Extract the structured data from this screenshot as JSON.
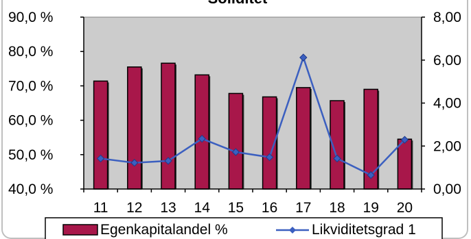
{
  "chart_data": {
    "type": "bar",
    "title": "Soliditet",
    "categories": [
      "11",
      "12",
      "13",
      "14",
      "15",
      "16",
      "17",
      "18",
      "19",
      "20"
    ],
    "series": [
      {
        "name": "Egenkapitalandel %",
        "type": "bar",
        "axis": "left",
        "color": "#a8174a",
        "values": [
          71.4,
          75.5,
          76.6,
          73.2,
          67.8,
          66.8,
          69.5,
          65.7,
          69.0,
          54.5
        ]
      },
      {
        "name": "Likviditetsgrad  1",
        "type": "line",
        "axis": "right",
        "color": "#3b5fc0",
        "values": [
          1.42,
          1.22,
          1.31,
          2.34,
          1.72,
          1.48,
          6.12,
          1.42,
          0.65,
          2.29
        ]
      }
    ],
    "y_left": {
      "lim": [
        40,
        90
      ],
      "ticks": [
        40,
        50,
        60,
        70,
        80,
        90
      ],
      "tick_labels": [
        "40,0 %",
        "50,0 %",
        "60,0 %",
        "70,0 %",
        "80,0 %",
        "90,0 %"
      ]
    },
    "y_right": {
      "lim": [
        0,
        8
      ],
      "ticks": [
        0,
        2,
        4,
        6,
        8
      ],
      "tick_labels": [
        "0,00",
        "2,00",
        "4,00",
        "6,00",
        "8,00"
      ]
    },
    "grid": false,
    "plot_background": "#cccccc",
    "legend_position": "bottom"
  }
}
